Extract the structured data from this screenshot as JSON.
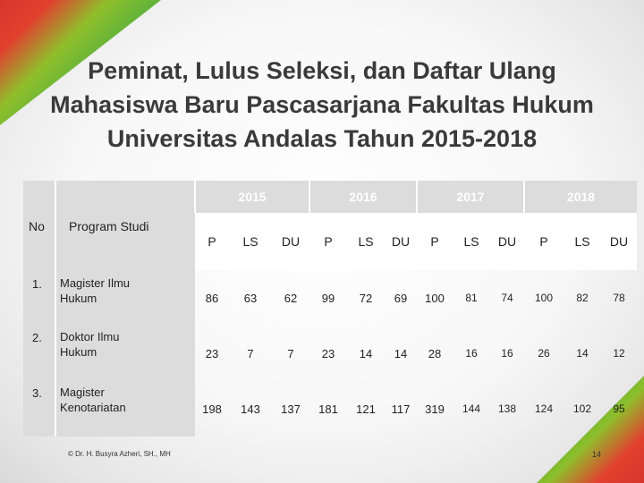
{
  "title_lines": [
    "Peminat, Lulus Seleksi, dan Daftar Ulang",
    "Mahasiswa Baru Pascasarjana Fakultas Hukum",
    "Universitas Andalas Tahun 2015-2018"
  ],
  "table": {
    "col_no": "No",
    "col_program": "Program Studi",
    "years": [
      "2015",
      "2016",
      "2017",
      "2018"
    ],
    "sub_cols": [
      "P",
      "LS",
      "DU"
    ],
    "rows": [
      {
        "no": "1.",
        "program": [
          "Magister Ilmu",
          "Hukum"
        ],
        "values": [
          "86",
          "63",
          "62",
          "99",
          "72",
          "69",
          "100",
          "81",
          "74",
          "100",
          "82",
          "78"
        ]
      },
      {
        "no": "2.",
        "program": [
          "Doktor Ilmu",
          "Hukum"
        ],
        "values": [
          "23",
          "7",
          "7",
          "23",
          "14",
          "14",
          "28",
          "16",
          "16",
          "26",
          "14",
          "12"
        ]
      },
      {
        "no": "3.",
        "program": [
          "Magister",
          "Kenotariatan"
        ],
        "values": [
          "198",
          "143",
          "137",
          "181",
          "121",
          "117",
          "319",
          "144",
          "138",
          "124",
          "102",
          "95"
        ]
      }
    ]
  },
  "footer": "© Dr. H. Busyra Azheri, SH., MH",
  "page_number": "14"
}
